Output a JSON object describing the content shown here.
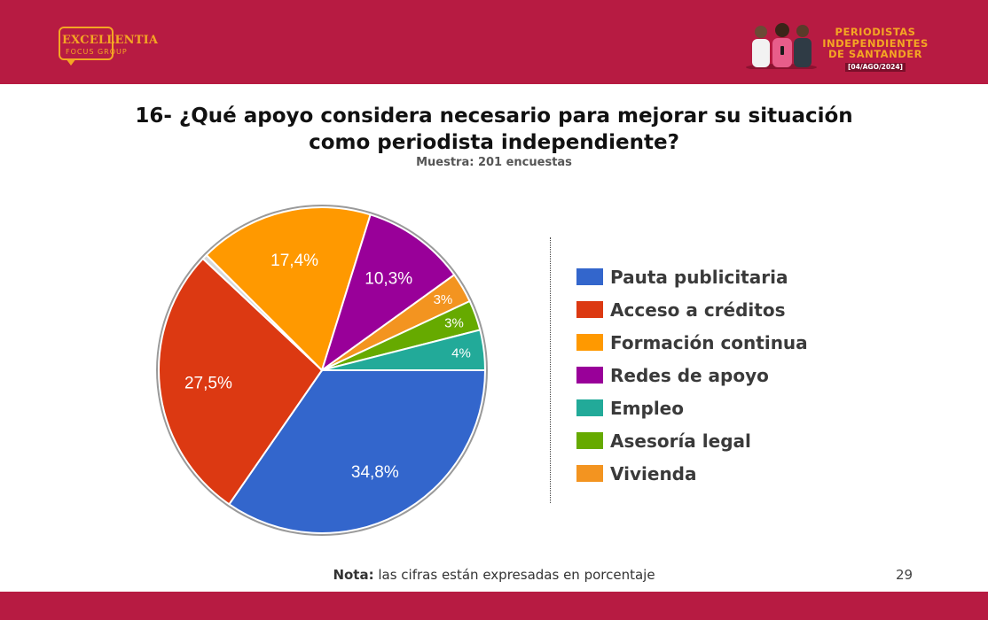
{
  "header": {
    "logo": {
      "main": "EXCELLENTIA",
      "sub": "FOCUS GROUP"
    },
    "brand": {
      "line1": "PERIODISTAS",
      "line2": "INDEPENDIENTES",
      "line3": "DE SANTANDER",
      "date": "[04/AGO/2024]"
    },
    "colors": {
      "bar": "#b71b42",
      "accent": "#f4a623"
    }
  },
  "chart_data": {
    "type": "pie",
    "title": "16- ¿Qué apoyo considera necesario para mejorar su situación como periodista independiente?",
    "subtitle": "Muestra: 201 encuestas",
    "legend_position": "right",
    "slices": [
      {
        "name": "Pauta publicitaria",
        "value": 34.8,
        "label": "34,8%",
        "color": "#3366cc"
      },
      {
        "name": "Acceso a créditos",
        "value": 27.5,
        "label": "27,5%",
        "color": "#dc3912"
      },
      {
        "name": "",
        "value": 0.5,
        "label": "",
        "color": "#d9d9d9"
      },
      {
        "name": "Formación continua",
        "value": 17.4,
        "label": "17,4%",
        "color": "#ff9900"
      },
      {
        "name": "Redes de apoyo",
        "value": 10.3,
        "label": "10,3%",
        "color": "#990099"
      },
      {
        "name": "Vivienda",
        "value": 3,
        "label": "3%",
        "color": "#f39420"
      },
      {
        "name": "Asesoría legal",
        "value": 3,
        "label": "3%",
        "color": "#66aa00"
      },
      {
        "name": "Empleo",
        "value": 4,
        "label": "4%",
        "color": "#22aa99"
      }
    ]
  },
  "legend": [
    {
      "label": "Pauta publicitaria",
      "color": "#3366cc"
    },
    {
      "label": "Acceso a créditos",
      "color": "#dc3912"
    },
    {
      "label": "Formación continua",
      "color": "#ff9900"
    },
    {
      "label": "Redes de apoyo",
      "color": "#990099"
    },
    {
      "label": "Empleo",
      "color": "#22aa99"
    },
    {
      "label": "Asesoría legal",
      "color": "#66aa00"
    },
    {
      "label": "Vivienda",
      "color": "#f39420"
    }
  ],
  "footer": {
    "note_label": "Nota:",
    "note_text": " las cifras están expresadas en porcentaje",
    "page_number": "29"
  }
}
